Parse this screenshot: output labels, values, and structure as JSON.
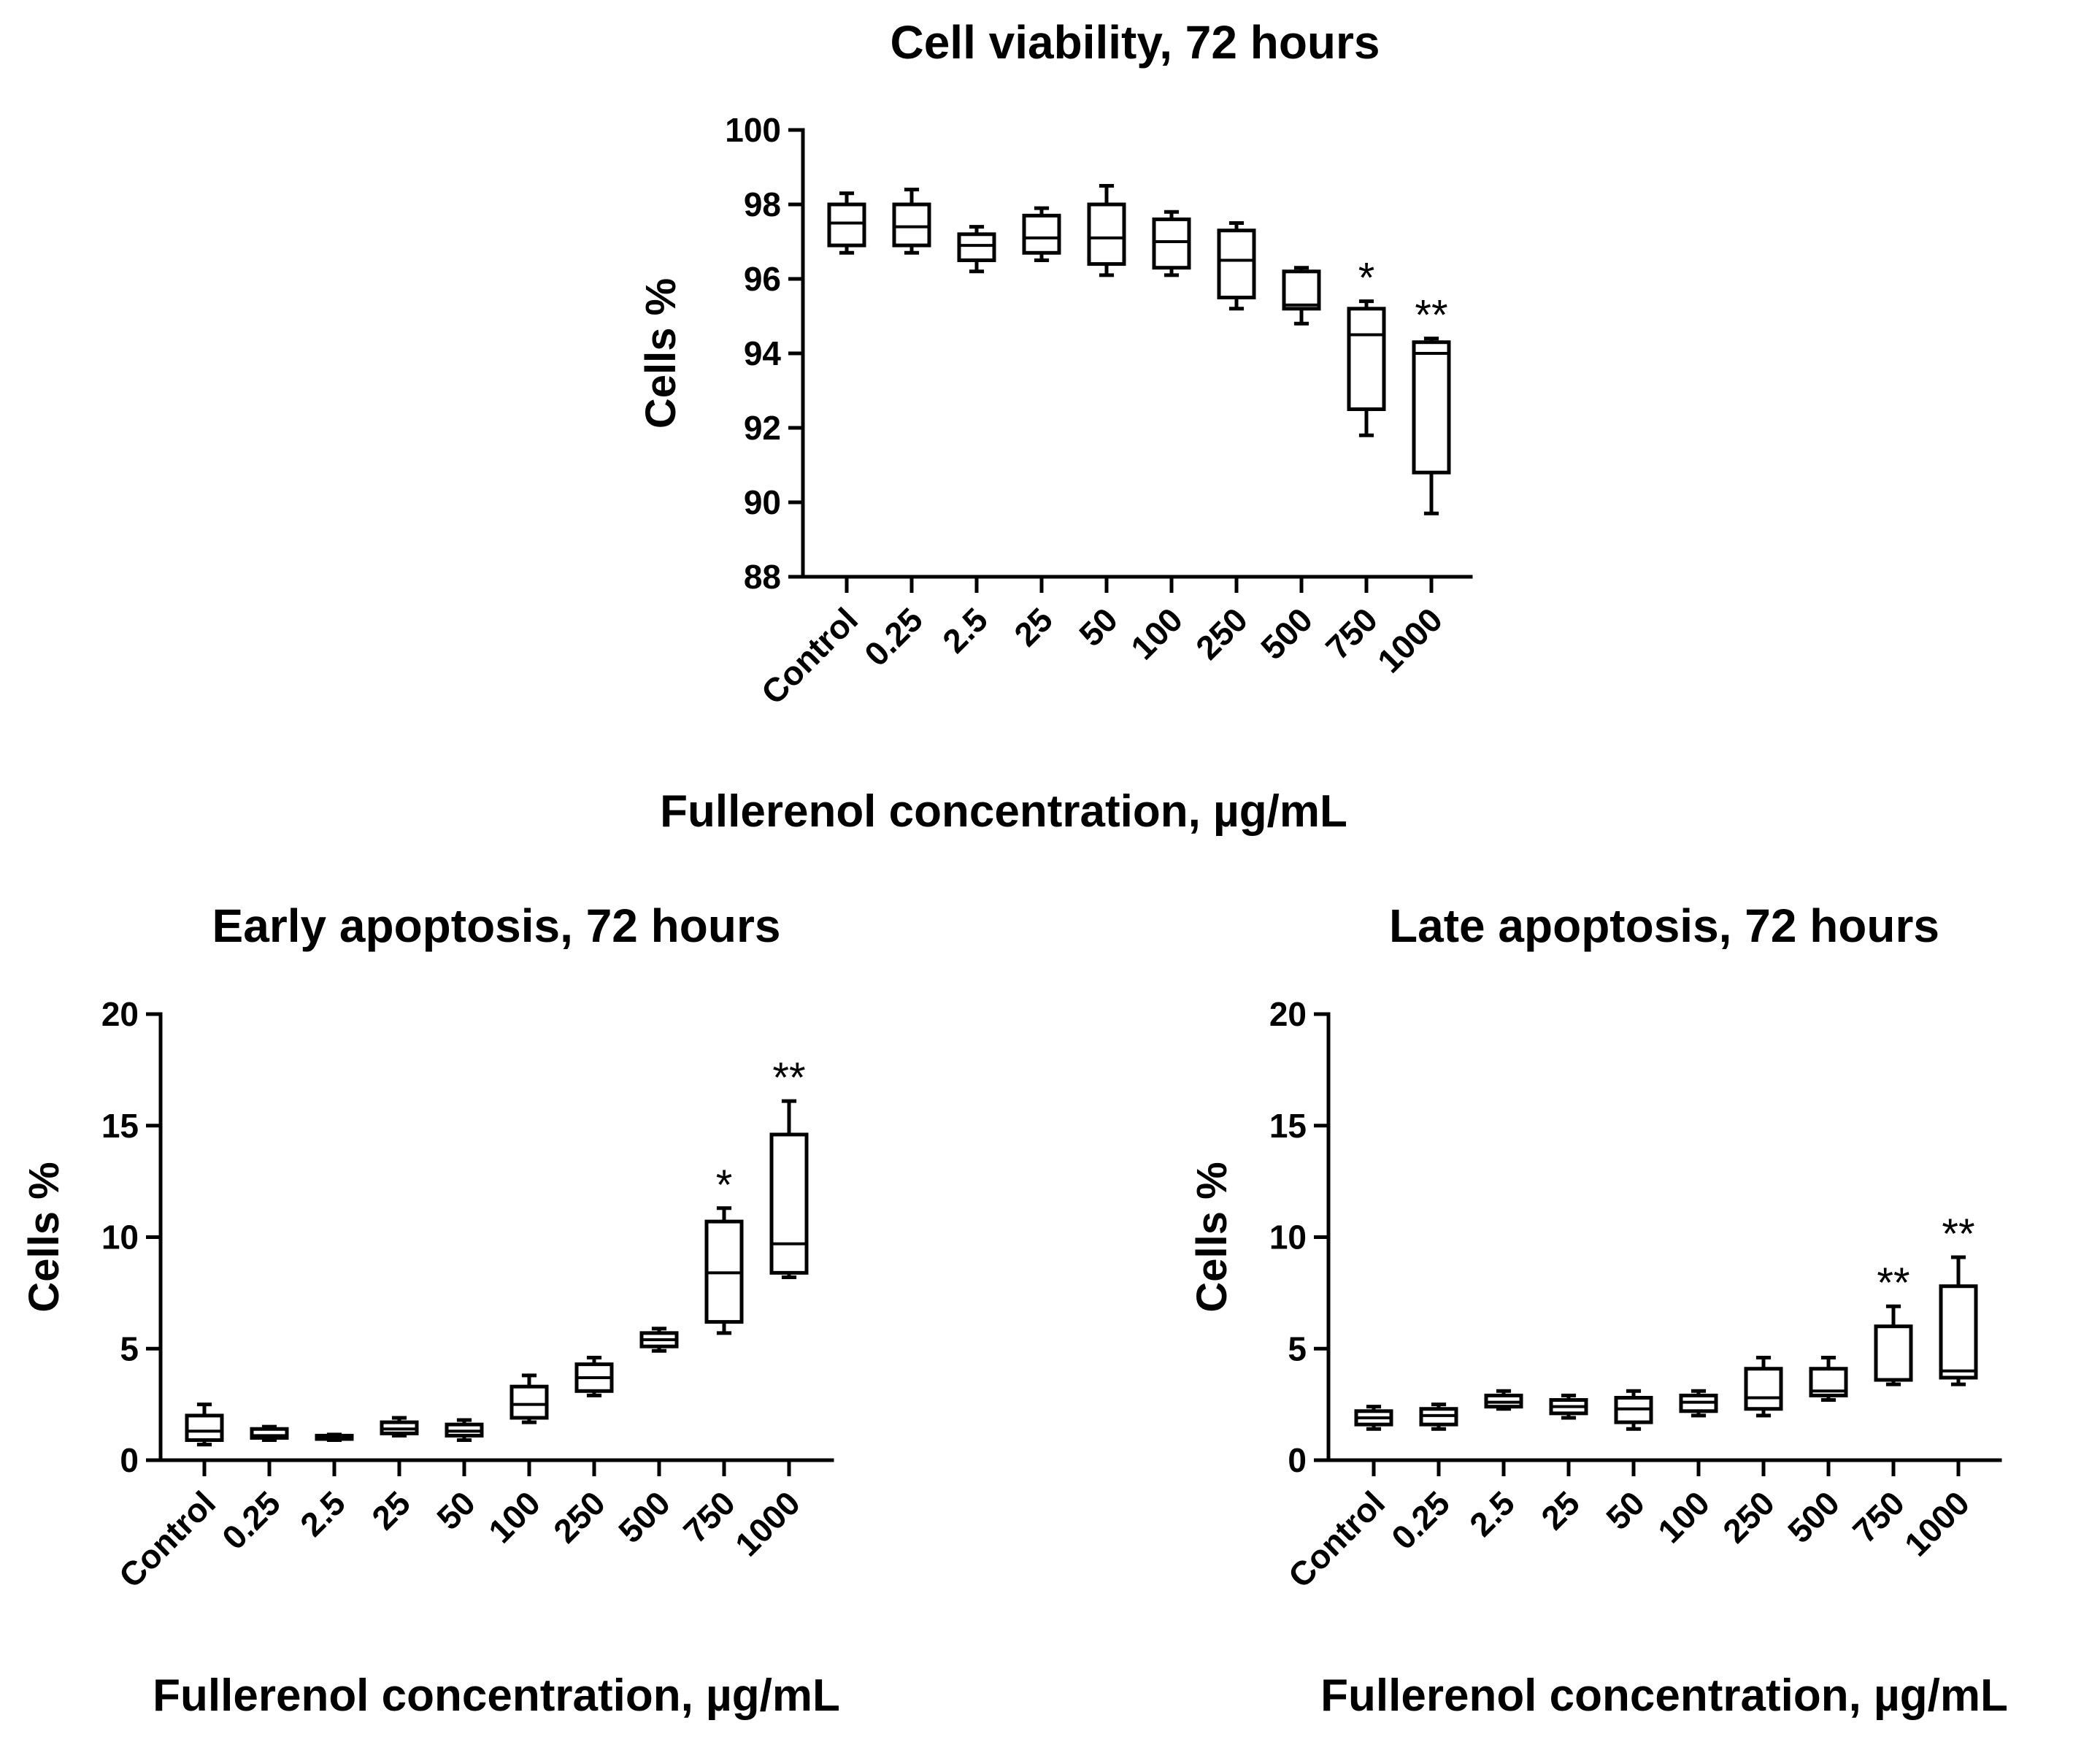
{
  "chart_data": [
    {
      "type": "box",
      "id": "viability",
      "title": "Cell viability, 72 hours",
      "xlabel": "Fullerenol concentration, µg/mL",
      "ylabel": "Cells %",
      "ylim": [
        88,
        100
      ],
      "yticks": [
        88,
        90,
        92,
        94,
        96,
        98,
        100
      ],
      "categories": [
        "Control",
        "0.25",
        "2.5",
        "25",
        "50",
        "100",
        "250",
        "500",
        "750",
        "1000"
      ],
      "boxes": [
        {
          "min": 96.7,
          "q1": 96.9,
          "median": 97.5,
          "q3": 98.0,
          "max": 98.3
        },
        {
          "min": 96.7,
          "q1": 96.9,
          "median": 97.4,
          "q3": 98.0,
          "max": 98.4
        },
        {
          "min": 96.2,
          "q1": 96.5,
          "median": 96.9,
          "q3": 97.2,
          "max": 97.4
        },
        {
          "min": 96.5,
          "q1": 96.7,
          "median": 97.1,
          "q3": 97.7,
          "max": 97.9
        },
        {
          "min": 96.1,
          "q1": 96.4,
          "median": 97.1,
          "q3": 98.0,
          "max": 98.5
        },
        {
          "min": 96.1,
          "q1": 96.3,
          "median": 97.0,
          "q3": 97.6,
          "max": 97.8
        },
        {
          "min": 95.2,
          "q1": 95.5,
          "median": 96.5,
          "q3": 97.3,
          "max": 97.5
        },
        {
          "min": 94.8,
          "q1": 95.2,
          "median": 95.3,
          "q3": 96.2,
          "max": 96.3
        },
        {
          "min": 91.8,
          "q1": 92.5,
          "median": 94.5,
          "q3": 95.2,
          "max": 95.4
        },
        {
          "min": 89.7,
          "q1": 90.8,
          "median": 94.0,
          "q3": 94.3,
          "max": 94.4
        }
      ],
      "significance": [
        "",
        "",
        "",
        "",
        "",
        "",
        "",
        "",
        "*",
        "**"
      ]
    },
    {
      "type": "box",
      "id": "early",
      "title": "Early apoptosis, 72 hours",
      "xlabel": "Fullerenol concentration, µg/mL",
      "ylabel": "Cells %",
      "ylim": [
        0,
        20
      ],
      "yticks": [
        0,
        5,
        10,
        15,
        20
      ],
      "categories": [
        "Control",
        "0.25",
        "2.5",
        "25",
        "50",
        "100",
        "250",
        "500",
        "750",
        "1000"
      ],
      "boxes": [
        {
          "min": 0.7,
          "q1": 0.9,
          "median": 1.3,
          "q3": 2.0,
          "max": 2.5
        },
        {
          "min": 0.9,
          "q1": 1.0,
          "median": 1.1,
          "q3": 1.4,
          "max": 1.5
        },
        {
          "min": 0.9,
          "q1": 0.95,
          "median": 1.0,
          "q3": 1.1,
          "max": 1.15
        },
        {
          "min": 1.1,
          "q1": 1.2,
          "median": 1.4,
          "q3": 1.7,
          "max": 1.9
        },
        {
          "min": 0.9,
          "q1": 1.1,
          "median": 1.3,
          "q3": 1.6,
          "max": 1.8
        },
        {
          "min": 1.7,
          "q1": 1.9,
          "median": 2.5,
          "q3": 3.3,
          "max": 3.8
        },
        {
          "min": 2.9,
          "q1": 3.1,
          "median": 3.7,
          "q3": 4.3,
          "max": 4.6
        },
        {
          "min": 4.9,
          "q1": 5.1,
          "median": 5.4,
          "q3": 5.7,
          "max": 5.9
        },
        {
          "min": 5.7,
          "q1": 6.2,
          "median": 8.4,
          "q3": 10.7,
          "max": 11.3
        },
        {
          "min": 8.2,
          "q1": 8.4,
          "median": 9.7,
          "q3": 14.6,
          "max": 16.1
        }
      ],
      "significance": [
        "",
        "",
        "",
        "",
        "",
        "",
        "",
        "",
        "*",
        "**"
      ]
    },
    {
      "type": "box",
      "id": "late",
      "title": "Late apoptosis, 72 hours",
      "xlabel": "Fullerenol concentration, µg/mL",
      "ylabel": "Cells %",
      "ylim": [
        0,
        20
      ],
      "yticks": [
        0,
        5,
        10,
        15,
        20
      ],
      "categories": [
        "Control",
        "0.25",
        "2.5",
        "25",
        "50",
        "100",
        "250",
        "500",
        "750",
        "1000"
      ],
      "boxes": [
        {
          "min": 1.4,
          "q1": 1.6,
          "median": 1.9,
          "q3": 2.2,
          "max": 2.4
        },
        {
          "min": 1.4,
          "q1": 1.6,
          "median": 2.0,
          "q3": 2.3,
          "max": 2.5
        },
        {
          "min": 2.3,
          "q1": 2.4,
          "median": 2.6,
          "q3": 2.9,
          "max": 3.1
        },
        {
          "min": 1.9,
          "q1": 2.1,
          "median": 2.4,
          "q3": 2.7,
          "max": 2.9
        },
        {
          "min": 1.4,
          "q1": 1.7,
          "median": 2.3,
          "q3": 2.8,
          "max": 3.1
        },
        {
          "min": 2.0,
          "q1": 2.2,
          "median": 2.6,
          "q3": 2.9,
          "max": 3.1
        },
        {
          "min": 2.0,
          "q1": 2.3,
          "median": 2.8,
          "q3": 4.1,
          "max": 4.6
        },
        {
          "min": 2.7,
          "q1": 2.9,
          "median": 3.1,
          "q3": 4.1,
          "max": 4.6
        },
        {
          "min": 3.4,
          "q1": 3.6,
          "median": 3.6,
          "q3": 6.0,
          "max": 6.9
        },
        {
          "min": 3.4,
          "q1": 3.7,
          "median": 4.0,
          "q3": 7.8,
          "max": 9.1
        }
      ],
      "significance": [
        "",
        "",
        "",
        "",
        "",
        "",
        "",
        "",
        "**",
        "**"
      ]
    }
  ]
}
